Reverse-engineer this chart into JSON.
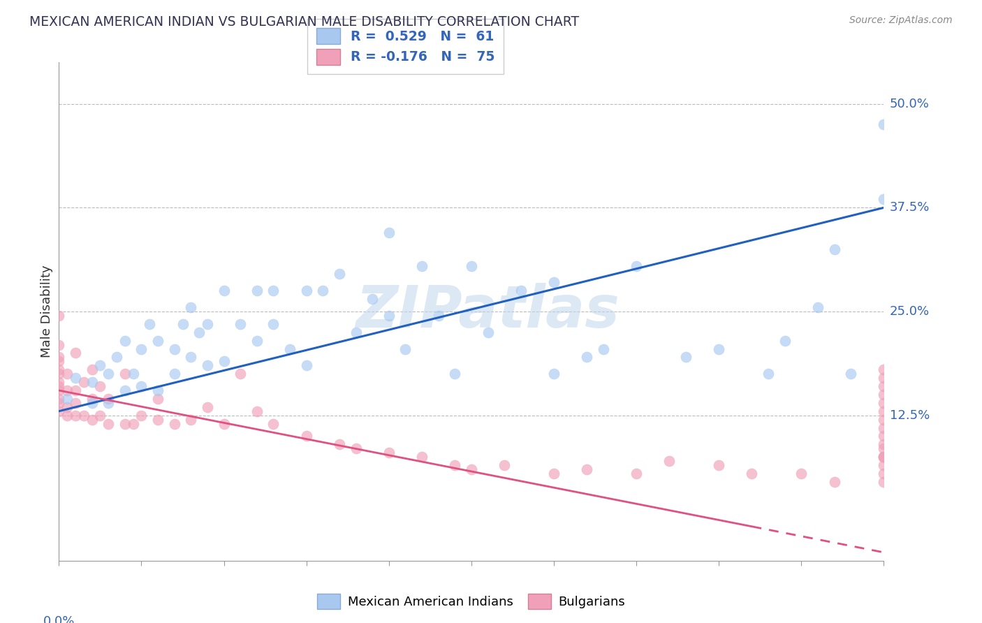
{
  "title": "MEXICAN AMERICAN INDIAN VS BULGARIAN MALE DISABILITY CORRELATION CHART",
  "source": "Source: ZipAtlas.com",
  "ylabel": "Male Disability",
  "y_tick_labels": [
    "12.5%",
    "25.0%",
    "37.5%",
    "50.0%"
  ],
  "y_tick_values": [
    0.125,
    0.25,
    0.375,
    0.5
  ],
  "xlim": [
    0.0,
    0.5
  ],
  "ylim": [
    -0.05,
    0.55
  ],
  "legend_label1": "R =  0.529   N =  61",
  "legend_label2": "R = -0.176   N =  75",
  "color_blue": "#A8C8F0",
  "color_pink": "#F0A0B8",
  "line_blue": "#2060C0",
  "line_pink": "#E05080",
  "watermark": "ZIPatlas",
  "blue_line_x0": 0.0,
  "blue_line_y0": 0.13,
  "blue_line_x1": 0.5,
  "blue_line_y1": 0.375,
  "pink_line_x0": 0.0,
  "pink_line_y0": 0.155,
  "pink_line_x1": 0.5,
  "pink_line_y1": -0.04,
  "blue_x": [
    0.005,
    0.01,
    0.02,
    0.02,
    0.025,
    0.03,
    0.03,
    0.035,
    0.04,
    0.04,
    0.045,
    0.05,
    0.05,
    0.055,
    0.06,
    0.06,
    0.07,
    0.07,
    0.075,
    0.08,
    0.08,
    0.085,
    0.09,
    0.09,
    0.1,
    0.1,
    0.11,
    0.12,
    0.12,
    0.13,
    0.13,
    0.14,
    0.15,
    0.15,
    0.16,
    0.17,
    0.18,
    0.19,
    0.2,
    0.2,
    0.21,
    0.22,
    0.23,
    0.24,
    0.25,
    0.26,
    0.28,
    0.3,
    0.3,
    0.32,
    0.33,
    0.35,
    0.38,
    0.4,
    0.43,
    0.44,
    0.46,
    0.47,
    0.48,
    0.5,
    0.5
  ],
  "blue_y": [
    0.145,
    0.17,
    0.14,
    0.165,
    0.185,
    0.14,
    0.175,
    0.195,
    0.155,
    0.215,
    0.175,
    0.16,
    0.205,
    0.235,
    0.155,
    0.215,
    0.175,
    0.205,
    0.235,
    0.195,
    0.255,
    0.225,
    0.185,
    0.235,
    0.19,
    0.275,
    0.235,
    0.215,
    0.275,
    0.235,
    0.275,
    0.205,
    0.275,
    0.185,
    0.275,
    0.295,
    0.225,
    0.265,
    0.245,
    0.345,
    0.205,
    0.305,
    0.245,
    0.175,
    0.305,
    0.225,
    0.275,
    0.175,
    0.285,
    0.195,
    0.205,
    0.305,
    0.195,
    0.205,
    0.175,
    0.215,
    0.255,
    0.325,
    0.175,
    0.385,
    0.475
  ],
  "pink_x": [
    0.0,
    0.0,
    0.0,
    0.0,
    0.0,
    0.0,
    0.0,
    0.0,
    0.0,
    0.0,
    0.0,
    0.0,
    0.005,
    0.005,
    0.005,
    0.005,
    0.01,
    0.01,
    0.01,
    0.01,
    0.015,
    0.015,
    0.02,
    0.02,
    0.02,
    0.025,
    0.025,
    0.03,
    0.03,
    0.04,
    0.04,
    0.045,
    0.05,
    0.06,
    0.06,
    0.07,
    0.08,
    0.09,
    0.1,
    0.11,
    0.12,
    0.13,
    0.15,
    0.17,
    0.18,
    0.2,
    0.22,
    0.24,
    0.25,
    0.27,
    0.3,
    0.32,
    0.35,
    0.37,
    0.4,
    0.42,
    0.45,
    0.47,
    0.5,
    0.5,
    0.5,
    0.5,
    0.5,
    0.5,
    0.5,
    0.5,
    0.5,
    0.5,
    0.5,
    0.5,
    0.5,
    0.5,
    0.5,
    0.5,
    0.5
  ],
  "pink_y": [
    0.13,
    0.14,
    0.145,
    0.155,
    0.16,
    0.165,
    0.175,
    0.18,
    0.19,
    0.195,
    0.21,
    0.245,
    0.125,
    0.135,
    0.155,
    0.175,
    0.125,
    0.14,
    0.155,
    0.2,
    0.125,
    0.165,
    0.12,
    0.145,
    0.18,
    0.125,
    0.16,
    0.115,
    0.145,
    0.115,
    0.175,
    0.115,
    0.125,
    0.12,
    0.145,
    0.115,
    0.12,
    0.135,
    0.115,
    0.175,
    0.13,
    0.115,
    0.1,
    0.09,
    0.085,
    0.08,
    0.075,
    0.065,
    0.06,
    0.065,
    0.055,
    0.06,
    0.055,
    0.07,
    0.065,
    0.055,
    0.055,
    0.045,
    0.075,
    0.075,
    0.045,
    0.055,
    0.065,
    0.075,
    0.085,
    0.09,
    0.1,
    0.11,
    0.12,
    0.13,
    0.14,
    0.15,
    0.16,
    0.17,
    0.18
  ],
  "bottom_legend_label1": "Mexican American Indians",
  "bottom_legend_label2": "Bulgarians"
}
